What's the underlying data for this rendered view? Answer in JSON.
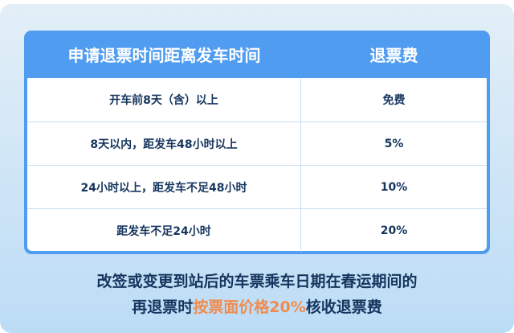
{
  "table": {
    "headers": [
      "申请退票时间距离发车时间",
      "退票费"
    ],
    "rows": [
      [
        "开车前8天（含）以上",
        "免费"
      ],
      [
        "8天以内，距发车48小时以上",
        "5%"
      ],
      [
        "24小时以上，距发车不足48小时",
        "10%"
      ],
      [
        "距发车不足24小时",
        "20%"
      ]
    ]
  },
  "note": {
    "line1": "改签或变更到站后的车票乘车日期在春运期间的",
    "line2_pre": "再退票时",
    "line2_highlight": "按票面价格20%",
    "line2_post": "核收退票费"
  },
  "colors": {
    "header": "#4f9cf1",
    "text": "#16355e",
    "highlight": "#f08b4e"
  }
}
